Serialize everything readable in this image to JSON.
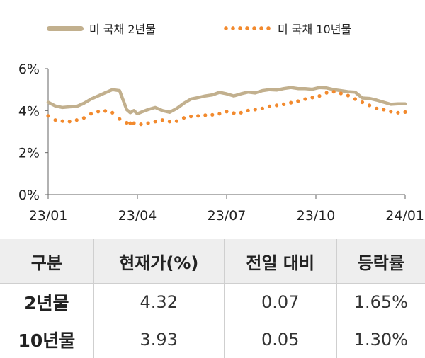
{
  "chart_data": {
    "type": "line",
    "legend_placement": "top",
    "grid": false,
    "x_tick_labels": [
      "23/01",
      "23/04",
      "23/07",
      "23/10",
      "24/01"
    ],
    "y_tick_labels": [
      "0%",
      "2%",
      "4%",
      "6%"
    ],
    "ylim": [
      0,
      6
    ],
    "xlim": [
      0,
      1
    ],
    "series": [
      {
        "name": "미 국채 2년물",
        "style": "solid",
        "color": "#c2b08e",
        "x": [
          0.0,
          0.02,
          0.04,
          0.06,
          0.08,
          0.1,
          0.12,
          0.14,
          0.16,
          0.18,
          0.2,
          0.22,
          0.23,
          0.24,
          0.25,
          0.26,
          0.28,
          0.3,
          0.32,
          0.34,
          0.36,
          0.38,
          0.4,
          0.42,
          0.44,
          0.46,
          0.48,
          0.5,
          0.52,
          0.54,
          0.56,
          0.58,
          0.6,
          0.62,
          0.64,
          0.66,
          0.68,
          0.7,
          0.72,
          0.74,
          0.76,
          0.78,
          0.8,
          0.82,
          0.84,
          0.86,
          0.88,
          0.9,
          0.92,
          0.94,
          0.96,
          0.98,
          1.0
        ],
        "values": [
          4.4,
          4.22,
          4.15,
          4.18,
          4.2,
          4.35,
          4.55,
          4.7,
          4.85,
          5.0,
          4.95,
          4.05,
          3.9,
          4.0,
          3.85,
          3.92,
          4.05,
          4.15,
          4.0,
          3.92,
          4.1,
          4.35,
          4.55,
          4.62,
          4.7,
          4.75,
          4.87,
          4.8,
          4.7,
          4.8,
          4.88,
          4.84,
          4.95,
          5.0,
          4.98,
          5.05,
          5.1,
          5.05,
          5.05,
          5.02,
          5.1,
          5.08,
          5.0,
          4.95,
          4.9,
          4.88,
          4.6,
          4.58,
          4.5,
          4.4,
          4.3,
          4.32,
          4.32
        ]
      },
      {
        "name": "미 국채 10년물",
        "style": "dotted",
        "color": "#f28a2e",
        "x": [
          0.0,
          0.02,
          0.04,
          0.06,
          0.08,
          0.1,
          0.12,
          0.14,
          0.16,
          0.18,
          0.2,
          0.22,
          0.23,
          0.24,
          0.26,
          0.28,
          0.3,
          0.32,
          0.34,
          0.36,
          0.38,
          0.4,
          0.42,
          0.44,
          0.46,
          0.48,
          0.5,
          0.52,
          0.54,
          0.56,
          0.58,
          0.6,
          0.62,
          0.64,
          0.66,
          0.68,
          0.7,
          0.72,
          0.74,
          0.76,
          0.78,
          0.8,
          0.82,
          0.84,
          0.86,
          0.88,
          0.9,
          0.92,
          0.94,
          0.96,
          0.98,
          1.0
        ],
        "values": [
          3.75,
          3.55,
          3.5,
          3.48,
          3.55,
          3.65,
          3.85,
          3.95,
          3.98,
          3.9,
          3.6,
          3.42,
          3.4,
          3.4,
          3.35,
          3.4,
          3.48,
          3.55,
          3.48,
          3.5,
          3.65,
          3.72,
          3.75,
          3.78,
          3.8,
          3.85,
          3.95,
          3.88,
          3.9,
          4.0,
          4.05,
          4.1,
          4.2,
          4.25,
          4.3,
          4.38,
          4.45,
          4.55,
          4.62,
          4.7,
          4.85,
          4.9,
          4.82,
          4.72,
          4.55,
          4.4,
          4.25,
          4.1,
          4.05,
          3.95,
          3.9,
          3.93
        ]
      }
    ]
  },
  "table": {
    "headers": [
      "구분",
      "현재가(%)",
      "전일 대비",
      "등락률"
    ],
    "rows": [
      [
        "2년물",
        "4.32",
        "0.07",
        "1.65%"
      ],
      [
        "10년물",
        "3.93",
        "0.05",
        "1.30%"
      ]
    ]
  }
}
